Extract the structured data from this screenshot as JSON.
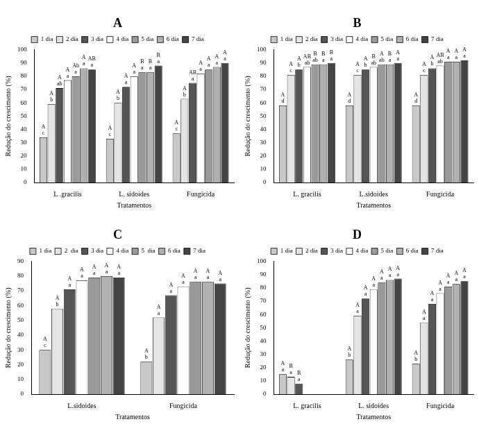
{
  "chart_data": [
    {
      "type": "bar",
      "title": "A",
      "x_label": "Tratamentos",
      "y_label": "Redução do crescimento (%)",
      "categories": [
        "L .gracilis",
        "L. sidoides",
        "Fungicida"
      ],
      "ylim": [
        0,
        100
      ],
      "yticks": [
        0,
        10,
        20,
        30,
        40,
        50,
        60,
        70,
        80,
        90,
        100
      ],
      "grid": false,
      "legend": "top",
      "series": [
        {
          "name": "1 dia",
          "color": "#c8c8c8",
          "values": [
            34,
            33,
            37
          ],
          "letters": [
            [
              "A",
              "c"
            ],
            [
              "A",
              "c"
            ],
            [
              "A",
              "c"
            ]
          ]
        },
        {
          "name": "2 dia",
          "color": "#e4e4e4",
          "values": [
            59,
            60,
            63
          ],
          "letters": [
            [
              "A",
              "b"
            ],
            [
              "A",
              "b"
            ],
            [
              "A",
              "b"
            ]
          ]
        },
        {
          "name": "3 dia",
          "color": "#555555",
          "values": [
            71,
            72,
            75
          ],
          "letters": [
            [
              "A",
              "ab"
            ],
            [
              "A",
              "a"
            ],
            [
              "AB",
              "a"
            ]
          ]
        },
        {
          "name": "4 dia",
          "color": "#ffffff",
          "values": [
            77,
            80,
            82
          ],
          "letters": [
            [
              "A",
              "a"
            ],
            [
              "A",
              "a"
            ],
            [
              "A",
              "a"
            ]
          ]
        },
        {
          "name": "5 dia",
          "color": "#9a9a9a",
          "values": [
            80,
            83,
            85
          ],
          "letters": [
            [
              "Ab",
              "a"
            ],
            [
              "B",
              "a"
            ],
            [
              "A",
              "a"
            ]
          ]
        },
        {
          "name": "6 dia",
          "color": "#b0b0b0",
          "values": [
            86,
            83,
            87
          ],
          "letters": [
            [
              "A",
              "a"
            ],
            [
              "B",
              "a"
            ],
            [
              "A",
              "a"
            ]
          ]
        },
        {
          "name": "7 dia",
          "color": "#444444",
          "values": [
            85,
            88,
            90
          ],
          "letters": [
            [
              "AB",
              "a"
            ],
            [
              "B",
              "a"
            ],
            [
              "A",
              "a"
            ]
          ]
        }
      ]
    },
    {
      "type": "bar",
      "title": "B",
      "x_label": "Tratamentos",
      "y_label": "Redução do crescimento (%)",
      "categories": [
        "L. gracilis",
        "L.sidoides",
        "Fungicida"
      ],
      "ylim": [
        0,
        100
      ],
      "yticks": [
        0,
        10,
        20,
        30,
        40,
        50,
        60,
        70,
        80,
        90,
        100
      ],
      "grid": false,
      "legend": "top",
      "series": [
        {
          "name": "1 dia",
          "color": "#c8c8c8",
          "values": [
            58,
            58,
            58
          ],
          "letters": [
            [
              "A",
              "d"
            ],
            [
              "A",
              "d"
            ],
            [
              "A",
              "d"
            ]
          ]
        },
        {
          "name": "2 dia",
          "color": "#e4e4e4",
          "values": [
            81,
            81,
            81
          ],
          "letters": [
            [
              "A",
              "c"
            ],
            [
              "A",
              "c"
            ],
            [
              "A",
              "c"
            ]
          ]
        },
        {
          "name": "3 dia",
          "color": "#555555",
          "values": [
            85,
            85,
            86
          ],
          "letters": [
            [
              "A",
              "b"
            ],
            [
              "A",
              "b"
            ],
            [
              "A",
              "b"
            ]
          ]
        },
        {
          "name": "4 dia",
          "color": "#ffffff",
          "values": [
            87,
            87,
            88
          ],
          "letters": [
            [
              "AB",
              "ab"
            ],
            [
              "B",
              "ab"
            ],
            [
              "AB",
              "ab"
            ]
          ]
        },
        {
          "name": "5 dia",
          "color": "#9a9a9a",
          "values": [
            89,
            89,
            91
          ],
          "letters": [
            [
              "B",
              "ab"
            ],
            [
              "A",
              "ab"
            ],
            [
              "A",
              "a"
            ]
          ]
        },
        {
          "name": "6 dia",
          "color": "#b0b0b0",
          "values": [
            89,
            89,
            91
          ],
          "letters": [
            [
              "B",
              "a"
            ],
            [
              "B",
              "a"
            ],
            [
              "A",
              "a"
            ]
          ]
        },
        {
          "name": "7 dia",
          "color": "#444444",
          "values": [
            90,
            90,
            92
          ],
          "letters": [
            [
              "B",
              "a"
            ],
            [
              "A",
              "a"
            ],
            [
              "A",
              "a"
            ]
          ]
        }
      ]
    },
    {
      "type": "bar",
      "title": "C",
      "x_label": "Tratamentos",
      "y_label": "Redução do crescimento (%)",
      "categories": [
        "L.sidoides",
        "Fungicida"
      ],
      "ylim": [
        0,
        90
      ],
      "yticks": [
        0,
        10,
        20,
        30,
        40,
        50,
        60,
        70,
        80,
        90
      ],
      "grid": false,
      "legend": "top",
      "series": [
        {
          "name": "1 dia",
          "color": "#c8c8c8",
          "values": [
            30,
            22
          ],
          "letters": [
            [
              "A",
              "c"
            ],
            [
              "A",
              "b"
            ]
          ]
        },
        {
          "name": "2  dia",
          "color": "#e4e4e4",
          "values": [
            58,
            52
          ],
          "letters": [
            [
              "A",
              "b"
            ],
            [
              "A",
              "a"
            ]
          ]
        },
        {
          "name": "3 dia",
          "color": "#555555",
          "values": [
            71,
            67
          ],
          "letters": [
            [
              "A",
              "a"
            ],
            [
              "A",
              "a"
            ]
          ]
        },
        {
          "name": "4 dia",
          "color": "#ffffff",
          "values": [
            77,
            73
          ],
          "letters": [
            [
              "A",
              "a"
            ],
            [
              "A",
              "a"
            ]
          ]
        },
        {
          "name": "5  dia",
          "color": "#9a9a9a",
          "values": [
            79,
            76
          ],
          "letters": [
            [
              "A",
              "a"
            ],
            [
              "A",
              "a"
            ]
          ]
        },
        {
          "name": "6 dia",
          "color": "#b0b0b0",
          "values": [
            80,
            76
          ],
          "letters": [
            [
              "A",
              "a"
            ],
            [
              "A",
              "a"
            ]
          ]
        },
        {
          "name": "7 dia",
          "color": "#444444",
          "values": [
            79,
            75
          ],
          "letters": [
            [
              "A",
              "a"
            ],
            [
              "A",
              "a"
            ]
          ]
        }
      ]
    },
    {
      "type": "bar",
      "title": "D",
      "x_label": "Tratamentos",
      "y_label": "Redução do crescimento (%)",
      "categories": [
        "L. gracilis",
        "L. sidoides",
        "Fungicida"
      ],
      "ylim": [
        0,
        100
      ],
      "yticks": [
        0,
        10,
        20,
        30,
        40,
        50,
        60,
        70,
        80,
        90,
        100
      ],
      "grid": false,
      "legend": "top",
      "series": [
        {
          "name": "1 dia",
          "color": "#c8c8c8",
          "values": [
            15,
            26,
            23
          ],
          "letters": [
            [
              "A",
              "a"
            ],
            [
              "A",
              "b"
            ],
            [
              "A",
              "b"
            ]
          ]
        },
        {
          "name": "2 dia",
          "color": "#e4e4e4",
          "values": [
            13,
            59,
            54
          ],
          "letters": [
            [
              "B",
              "a"
            ],
            [
              "A",
              "a"
            ],
            [
              "A",
              "a"
            ]
          ]
        },
        {
          "name": "3 dia",
          "color": "#555555",
          "values": [
            8,
            72,
            68
          ],
          "letters": [
            [
              "B",
              "a"
            ],
            [
              "A",
              "a"
            ],
            [
              "A",
              "a"
            ]
          ]
        },
        {
          "name": "4 dia",
          "color": "#ffffff",
          "values": [
            null,
            79,
            76
          ],
          "letters": [
            null,
            [
              "A",
              "a"
            ],
            [
              "A",
              "a"
            ]
          ]
        },
        {
          "name": "5 dia",
          "color": "#9a9a9a",
          "values": [
            null,
            84,
            81
          ],
          "letters": [
            null,
            [
              "A",
              "a"
            ],
            [
              "A",
              "a"
            ]
          ]
        },
        {
          "name": "6 dia",
          "color": "#b0b0b0",
          "values": [
            null,
            86,
            83
          ],
          "letters": [
            null,
            [
              "A",
              "a"
            ],
            [
              "A",
              "a"
            ]
          ]
        },
        {
          "name": "7 dia",
          "color": "#444444",
          "values": [
            null,
            87,
            85
          ],
          "letters": [
            null,
            [
              "A",
              "a"
            ],
            [
              "A",
              "a"
            ]
          ]
        }
      ]
    }
  ]
}
